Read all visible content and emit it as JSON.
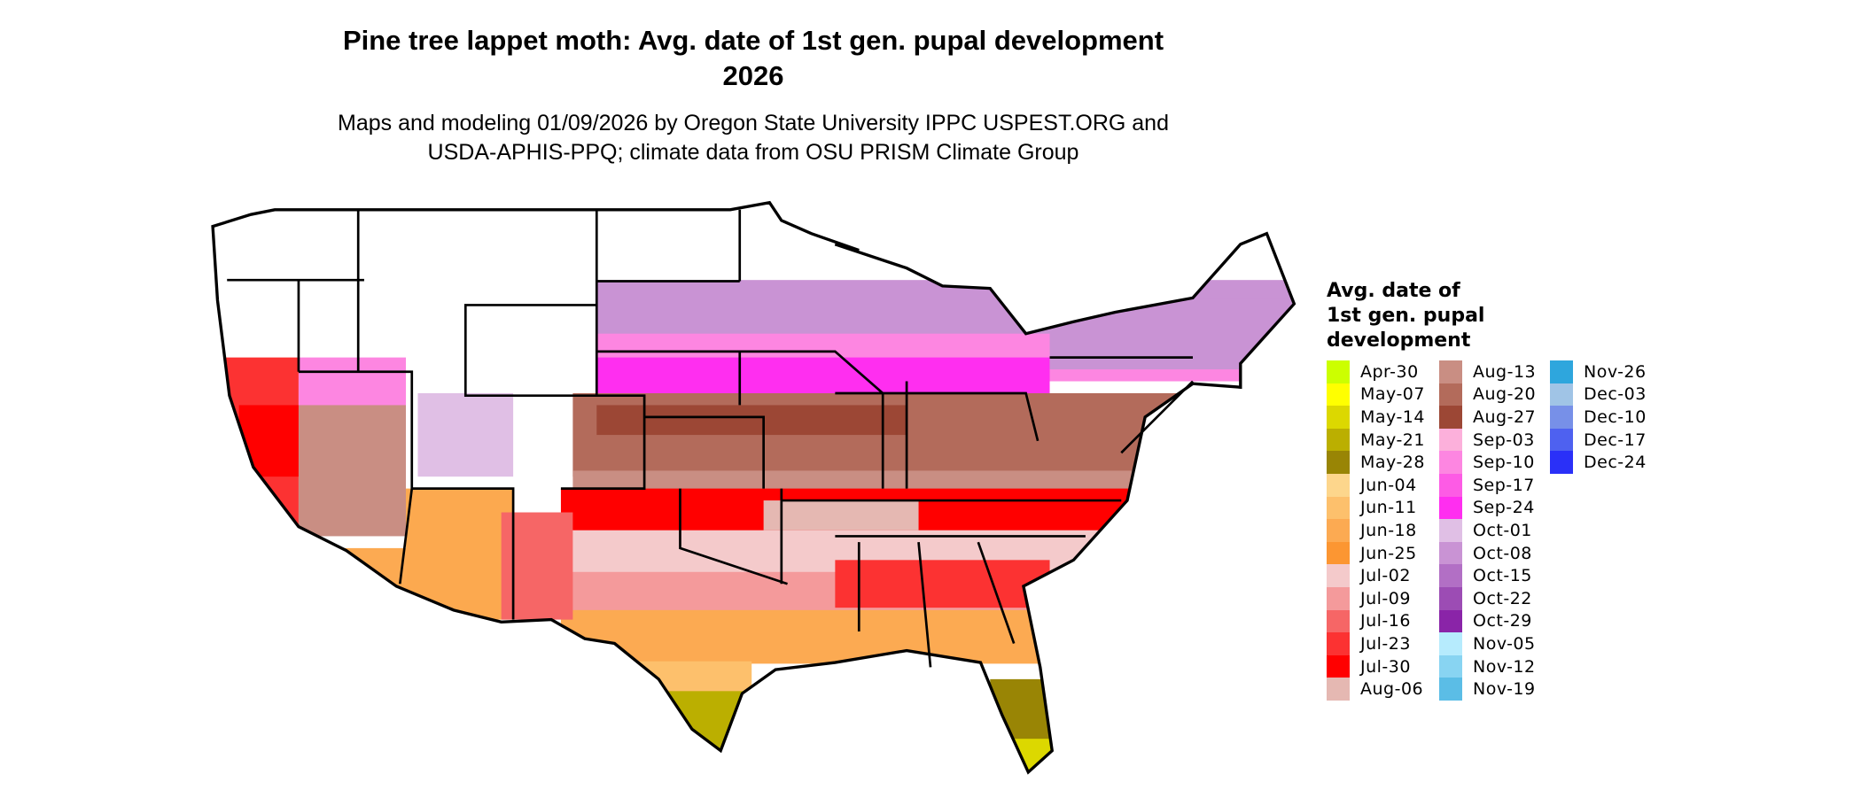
{
  "title": "Pine tree lappet moth: Avg. date of 1st gen. pupal development",
  "year": "2026",
  "subtitle_line1": "Maps and modeling 01/09/2026 by Oregon State University IPPC USPEST.ORG and",
  "subtitle_line2": "USDA-APHIS-PPQ; climate data from OSU PRISM Climate Group",
  "legend": {
    "title_lines": [
      "Avg. date of",
      "1st gen. pupal",
      "development"
    ],
    "items": [
      {
        "label": "Apr-30",
        "color": "#ccff00"
      },
      {
        "label": "May-07",
        "color": "#ffff00"
      },
      {
        "label": "May-14",
        "color": "#dcd800"
      },
      {
        "label": "May-21",
        "color": "#bbaf00"
      },
      {
        "label": "May-28",
        "color": "#998505"
      },
      {
        "label": "Jun-04",
        "color": "#fdd68c"
      },
      {
        "label": "Jun-11",
        "color": "#fdc06c"
      },
      {
        "label": "Jun-18",
        "color": "#fcaa52"
      },
      {
        "label": "Jun-25",
        "color": "#fc9632"
      },
      {
        "label": "Jul-02",
        "color": "#f4cacb"
      },
      {
        "label": "Jul-09",
        "color": "#f49a9b"
      },
      {
        "label": "Jul-16",
        "color": "#f66666"
      },
      {
        "label": "Jul-23",
        "color": "#fc3232"
      },
      {
        "label": "Jul-30",
        "color": "#ff0000"
      },
      {
        "label": "Aug-06",
        "color": "#e5b8b2"
      },
      {
        "label": "Aug-13",
        "color": "#c98e83"
      },
      {
        "label": "Aug-20",
        "color": "#b36b5b"
      },
      {
        "label": "Aug-27",
        "color": "#9c4735"
      },
      {
        "label": "Sep-03",
        "color": "#fcb0db"
      },
      {
        "label": "Sep-10",
        "color": "#fd86e1"
      },
      {
        "label": "Sep-17",
        "color": "#fd5be5"
      },
      {
        "label": "Sep-24",
        "color": "#ff2ef0"
      },
      {
        "label": "Oct-01",
        "color": "#e0bfe5"
      },
      {
        "label": "Oct-08",
        "color": "#c993d4"
      },
      {
        "label": "Oct-15",
        "color": "#b26fc5"
      },
      {
        "label": "Oct-22",
        "color": "#9c4cb4"
      },
      {
        "label": "Oct-29",
        "color": "#8a24a8"
      },
      {
        "label": "Nov-05",
        "color": "#b6ebfd"
      },
      {
        "label": "Nov-12",
        "color": "#88d4f2"
      },
      {
        "label": "Nov-19",
        "color": "#5bbde6"
      },
      {
        "label": "Nov-26",
        "color": "#2ea6dd"
      },
      {
        "label": "Dec-03",
        "color": "#a0c4e6"
      },
      {
        "label": "Dec-10",
        "color": "#7790e8"
      },
      {
        "label": "Dec-17",
        "color": "#4e61f0"
      },
      {
        "label": "Dec-24",
        "color": "#2a30f8"
      }
    ]
  }
}
